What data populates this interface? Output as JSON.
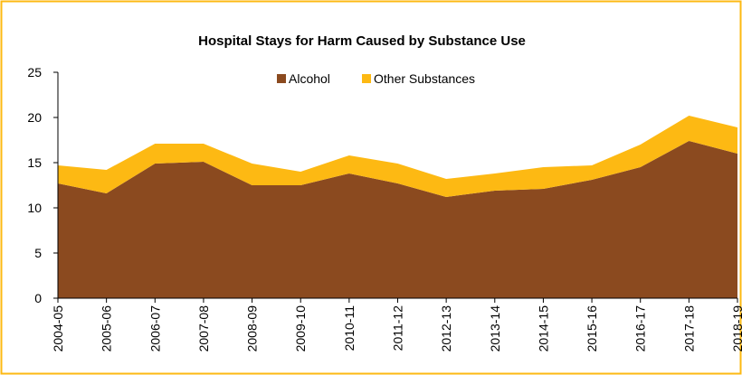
{
  "chart_data": {
    "type": "area",
    "stacked": true,
    "title": "Hospital Stays for Harm Caused by Substance Use",
    "xlabel": "",
    "ylabel": "",
    "categories": [
      "2004-05",
      "2005-06",
      "2006-07",
      "2007-08",
      "2008-09",
      "2009-10",
      "2010-11",
      "2011-12",
      "2012-13",
      "2013-14",
      "2014-15",
      "2015-16",
      "2016-17",
      "2017-18",
      "2018-19"
    ],
    "series": [
      {
        "name": "Alcohol",
        "color": "#8B4A1F",
        "values": [
          12.7,
          11.6,
          14.9,
          15.1,
          12.5,
          12.5,
          13.8,
          12.7,
          11.2,
          11.9,
          12.1,
          13.1,
          14.5,
          17.4,
          16.0
        ]
      },
      {
        "name": "Other Substances",
        "color": "#FDB913",
        "values": [
          2.0,
          2.6,
          2.2,
          2.0,
          2.4,
          1.5,
          2.0,
          2.2,
          2.0,
          1.9,
          2.4,
          1.6,
          2.5,
          2.8,
          2.9
        ]
      }
    ],
    "ylim": [
      0,
      25
    ],
    "yticks": [
      0,
      5,
      10,
      15,
      20,
      25
    ],
    "grid": false,
    "legend_position": "top",
    "border_color": "#FDB913"
  }
}
